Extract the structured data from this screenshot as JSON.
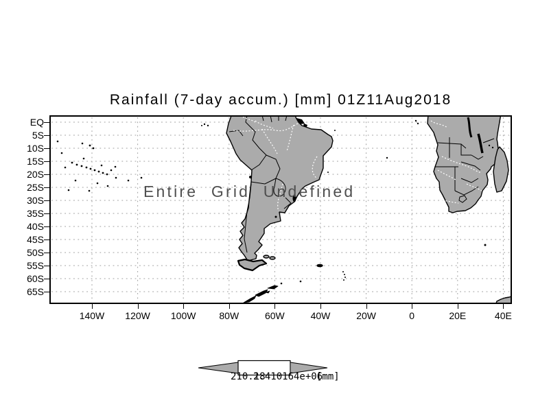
{
  "title": "Rainfall (7-day accum.) [mm] 01Z11Aug2018",
  "message": "Entire Grid Undefined",
  "axes": {
    "lat_labels": [
      "EQ",
      "5S",
      "10S",
      "15S",
      "20S",
      "25S",
      "30S",
      "35S",
      "40S",
      "45S",
      "50S",
      "55S",
      "60S",
      "65S"
    ],
    "lon_labels": [
      "140W",
      "120W",
      "100W",
      "80W",
      "60W",
      "40W",
      "20W",
      "0",
      "20E",
      "40E"
    ]
  },
  "colorbar": {
    "left_value": "210.18",
    "right_value": "2.410164e+06",
    "units": "[mm]"
  },
  "colors": {
    "land": "#ababab",
    "grid": "#9c9c9c",
    "message_text": "#4f4f4f",
    "colorbar_fill": "#ababab",
    "border": "#000000"
  }
}
